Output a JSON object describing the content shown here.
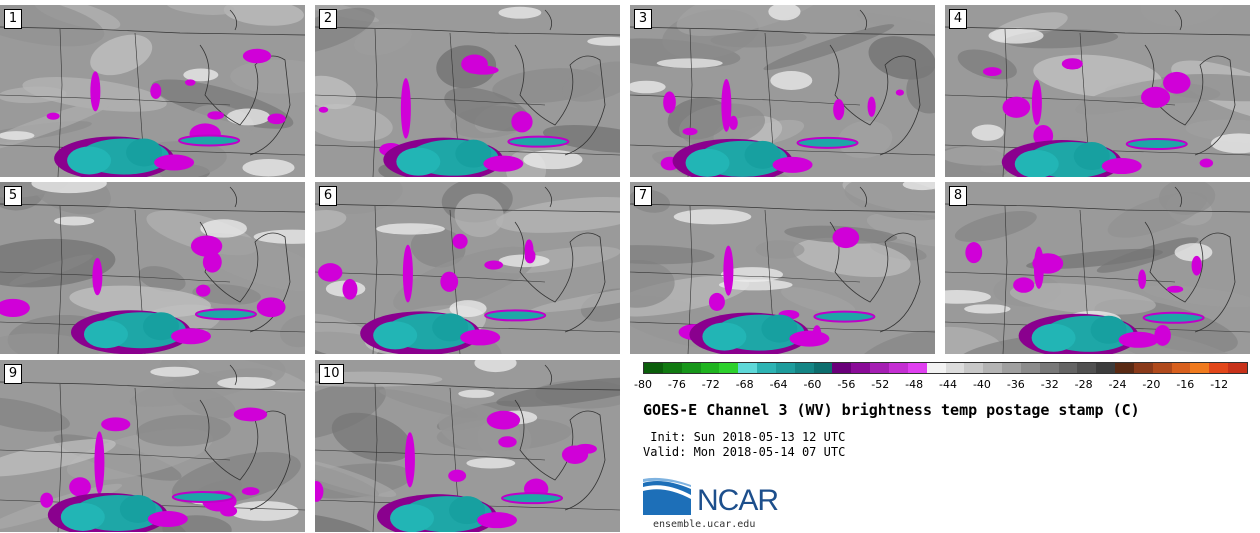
{
  "panels": [
    {
      "label": "1"
    },
    {
      "label": "2"
    },
    {
      "label": "3"
    },
    {
      "label": "4"
    },
    {
      "label": "5"
    },
    {
      "label": "6"
    },
    {
      "label": "7"
    },
    {
      "label": "8"
    },
    {
      "label": "9"
    },
    {
      "label": "10"
    }
  ],
  "colorbar": {
    "ticks": [
      "-80",
      "-76",
      "-72",
      "-68",
      "-64",
      "-60",
      "-56",
      "-52",
      "-48",
      "-44",
      "-40",
      "-36",
      "-32",
      "-28",
      "-24",
      "-20",
      "-16",
      "-12"
    ],
    "colors": [
      "#0b5e0b",
      "#117a11",
      "#17961a",
      "#1fb41f",
      "#2dd12d",
      "#5ed8d8",
      "#2db3b3",
      "#1e9c9c",
      "#148585",
      "#0d6e6e",
      "#6a007a",
      "#8a0b98",
      "#a51fb3",
      "#c42fd2",
      "#e040f0",
      "#f2f2f2",
      "#dcdcdc",
      "#c8c8c8",
      "#b4b4b4",
      "#a0a0a0",
      "#8c8c8c",
      "#787878",
      "#646464",
      "#505050",
      "#3c3c3c",
      "#5a2a14",
      "#8a3a1a",
      "#b04a1c",
      "#d8601e",
      "#f07a1e",
      "#e2471a",
      "#c8321a"
    ]
  },
  "title": "GOES-E Channel 3 (WV) brightness temp postage stamp (C)",
  "init_line": " Init: Sun 2018-05-13 12 UTC",
  "valid_line": "Valid: Mon 2018-05-14 07 UTC",
  "logo": {
    "text": "NCAR",
    "url": "ensemble.ucar.edu",
    "color": "#1d4f8c"
  }
}
